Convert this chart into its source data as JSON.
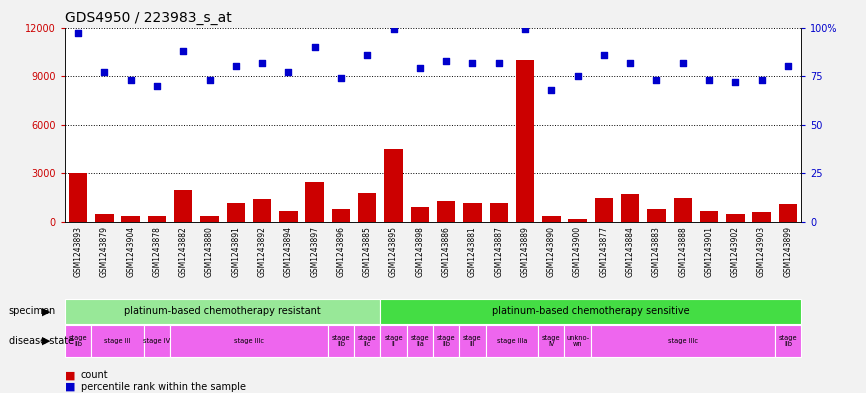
{
  "title": "GDS4950 / 223983_s_at",
  "samples": [
    "GSM1243893",
    "GSM1243879",
    "GSM1243904",
    "GSM1243878",
    "GSM1243882",
    "GSM1243880",
    "GSM1243891",
    "GSM1243892",
    "GSM1243894",
    "GSM1243897",
    "GSM1243896",
    "GSM1243885",
    "GSM1243895",
    "GSM1243898",
    "GSM1243886",
    "GSM1243881",
    "GSM1243887",
    "GSM1243889",
    "GSM1243890",
    "GSM1243900",
    "GSM1243877",
    "GSM1243884",
    "GSM1243883",
    "GSM1243888",
    "GSM1243901",
    "GSM1243902",
    "GSM1243903",
    "GSM1243899"
  ],
  "counts": [
    3000,
    500,
    400,
    350,
    2000,
    400,
    1200,
    1400,
    700,
    2500,
    800,
    1800,
    4500,
    900,
    1300,
    1200,
    1200,
    10000,
    350,
    200,
    1500,
    1700,
    800,
    1500,
    700,
    500,
    600,
    1100
  ],
  "percentiles": [
    97,
    77,
    73,
    70,
    88,
    73,
    80,
    82,
    77,
    90,
    74,
    86,
    99,
    79,
    83,
    82,
    82,
    99,
    68,
    75,
    86,
    82,
    73,
    82,
    73,
    72,
    73,
    80
  ],
  "specimen_groups": [
    {
      "label": "platinum-based chemotherapy resistant",
      "start": 0,
      "end": 12,
      "color": "#98E898"
    },
    {
      "label": "platinum-based chemotherapy sensitive",
      "start": 12,
      "end": 28,
      "color": "#44DD44"
    }
  ],
  "disease_states": [
    {
      "label": "stage\nIIb",
      "start": 0,
      "end": 1
    },
    {
      "label": "stage III",
      "start": 1,
      "end": 3
    },
    {
      "label": "stage IV",
      "start": 3,
      "end": 4
    },
    {
      "label": "stage IIIc",
      "start": 4,
      "end": 10
    },
    {
      "label": "stage\nIIb",
      "start": 10,
      "end": 11
    },
    {
      "label": "stage\nIIc",
      "start": 11,
      "end": 12
    },
    {
      "label": "stage\nII",
      "start": 12,
      "end": 13
    },
    {
      "label": "stage\nIIa",
      "start": 13,
      "end": 14
    },
    {
      "label": "stage\nIIb",
      "start": 14,
      "end": 15
    },
    {
      "label": "stage\nIII",
      "start": 15,
      "end": 16
    },
    {
      "label": "stage IIIa",
      "start": 16,
      "end": 18
    },
    {
      "label": "stage\nIV",
      "start": 18,
      "end": 19
    },
    {
      "label": "unkno-\nwn",
      "start": 19,
      "end": 20
    },
    {
      "label": "stage IIIc",
      "start": 20,
      "end": 27
    },
    {
      "label": "stage\nIIb",
      "start": 27,
      "end": 28
    }
  ],
  "disease_color": "#EE66EE",
  "ylim_left": [
    0,
    12000
  ],
  "ylim_right": [
    0,
    100
  ],
  "yticks_left": [
    0,
    3000,
    6000,
    9000,
    12000
  ],
  "yticks_right": [
    0,
    25,
    50,
    75,
    100
  ],
  "ytick_labels_right": [
    "0",
    "25",
    "50",
    "75",
    "100%"
  ],
  "bar_color": "#CC0000",
  "dot_color": "#0000CC",
  "plot_bg": "#FFFFFF",
  "fig_bg": "#F2F2F2",
  "xtick_bg": "#D8D8D8",
  "title_fontsize": 10,
  "tick_fontsize": 7,
  "sample_fontsize": 5.5
}
